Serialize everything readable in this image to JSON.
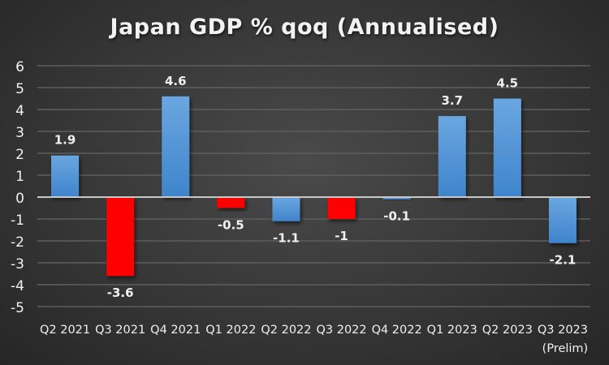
{
  "chart_data": {
    "type": "bar",
    "title": "Japan GDP % qoq (Annualised)",
    "xlabel": "",
    "ylabel": "",
    "ylim": [
      -5,
      6
    ],
    "yticks": [
      6,
      5,
      4,
      3,
      2,
      1,
      0,
      -1,
      -2,
      -3,
      -4,
      -5
    ],
    "ytick_labels": [
      "6",
      "5",
      "4",
      "3",
      "2",
      "1",
      "0",
      "-1",
      "-2",
      "-3",
      "-4",
      "-5"
    ],
    "grid": true,
    "legend": "none",
    "categories": [
      {
        "label": "Q2 2021",
        "sub": ""
      },
      {
        "label": "Q3 2021",
        "sub": ""
      },
      {
        "label": "Q4 2021",
        "sub": ""
      },
      {
        "label": "Q1 2022",
        "sub": ""
      },
      {
        "label": "Q2 2022",
        "sub": ""
      },
      {
        "label": "Q3 2022",
        "sub": ""
      },
      {
        "label": "Q4 2022",
        "sub": ""
      },
      {
        "label": "Q1 2023",
        "sub": ""
      },
      {
        "label": "Q2 2023",
        "sub": ""
      },
      {
        "label": "Q3 2023",
        "sub": "(Prelim)"
      }
    ],
    "values": [
      1.9,
      -3.6,
      4.6,
      -0.5,
      -1.1,
      -1,
      -0.1,
      3.7,
      4.5,
      -2.1
    ],
    "data_labels": [
      "1.9",
      "-3.6",
      "4.6",
      "-0.5",
      "-1.1",
      "-1",
      "-0.1",
      "3.7",
      "4.5",
      "-2.1"
    ],
    "bar_colors": [
      "blue",
      "red",
      "blue",
      "red",
      "blue",
      "red",
      "blue",
      "blue",
      "blue",
      "blue"
    ],
    "colors": {
      "blue_top": "#6aa6e0",
      "blue_bottom": "#3f84cc",
      "red": "#ff0000",
      "text": "#f0f0f0",
      "grid": "#5e5e5e",
      "zero_line": "#c8c8c8"
    }
  }
}
